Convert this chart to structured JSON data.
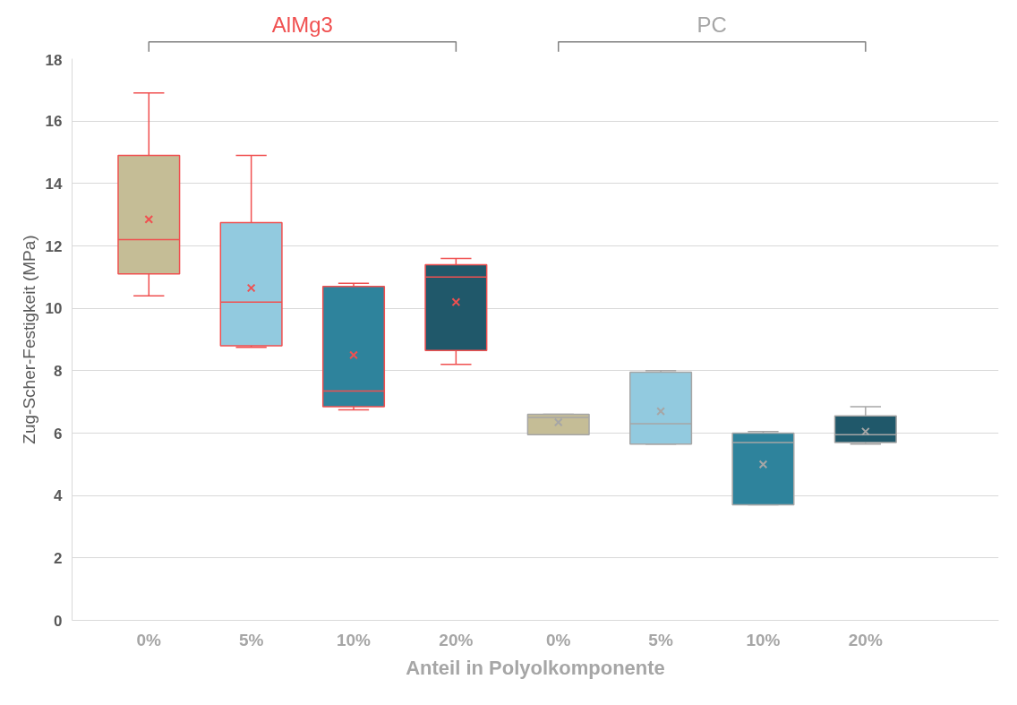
{
  "chart_data": {
    "type": "box",
    "ylabel": "Zug-Scher-Festigkeit (MPa)",
    "xlabel": "Anteil in Polyolkomponente",
    "categories": [
      "0%",
      "5%",
      "10%",
      "20%",
      "0%",
      "5%",
      "10%",
      "20%"
    ],
    "colors": [
      "#c5bd96",
      "#92cadf",
      "#2e839c",
      "#20586a",
      "#c5bd96",
      "#92cadf",
      "#2e839c",
      "#20586a"
    ],
    "series": [
      {
        "name": "AlMg3",
        "color": "#f05050",
        "boxes": [
          {
            "low": 10.4,
            "q1": 11.1,
            "median": 12.2,
            "q3": 14.9,
            "high": 16.9,
            "mean": 12.85
          },
          {
            "low": 8.75,
            "q1": 8.8,
            "median": 10.2,
            "q3": 12.75,
            "high": 14.9,
            "mean": 10.65
          },
          {
            "low": 6.75,
            "q1": 6.85,
            "median": 7.35,
            "q3": 10.7,
            "high": 10.8,
            "mean": 8.5
          },
          {
            "low": 8.2,
            "q1": 8.65,
            "median": 11.0,
            "q3": 11.4,
            "high": 11.6,
            "mean": 10.2
          },
          null,
          null,
          null,
          null
        ]
      },
      {
        "name": "PC",
        "color": "#a6a6a6",
        "boxes": [
          null,
          null,
          null,
          null,
          {
            "low": 5.95,
            "q1": 5.95,
            "median": 6.5,
            "q3": 6.6,
            "high": 6.6,
            "mean": 6.35
          },
          {
            "low": 5.65,
            "q1": 5.65,
            "median": 6.3,
            "q3": 7.95,
            "high": 8.0,
            "mean": 6.7
          },
          {
            "low": 3.7,
            "q1": 3.7,
            "median": 5.7,
            "q3": 6.0,
            "high": 6.05,
            "mean": 5.0
          },
          {
            "low": 5.65,
            "q1": 5.7,
            "median": 5.95,
            "q3": 6.55,
            "high": 6.85,
            "mean": 6.05
          }
        ]
      }
    ],
    "ylim": [
      0,
      18
    ],
    "yticks": [
      0,
      2,
      4,
      6,
      8,
      10,
      12,
      14,
      16,
      18
    ],
    "grid": "y",
    "marker": "cross"
  }
}
